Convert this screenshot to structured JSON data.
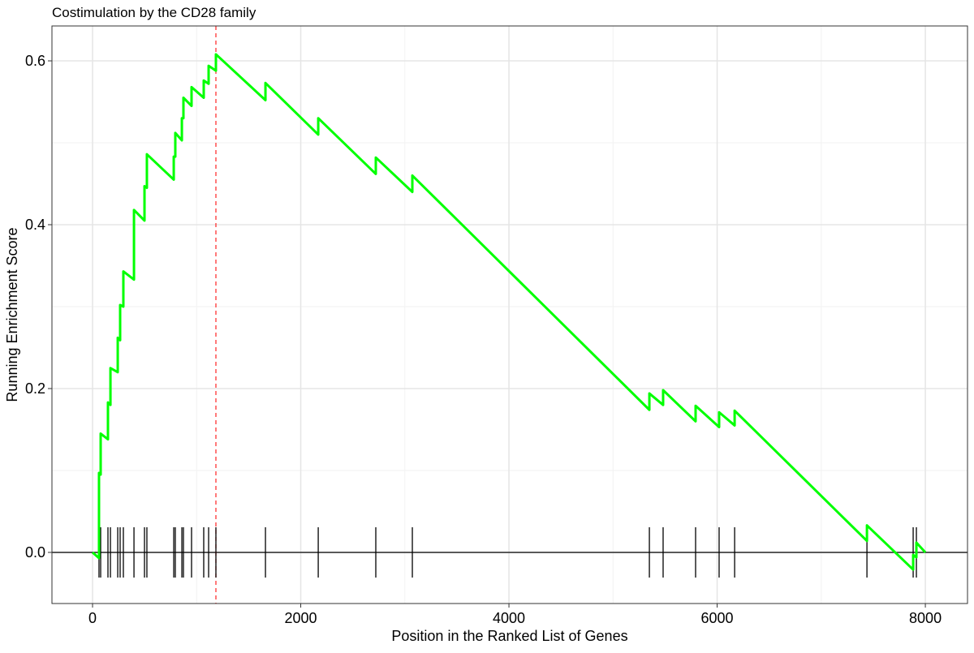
{
  "chart_data": {
    "type": "line",
    "title": "Costimulation by the CD28 family",
    "x_label": "Position in the Ranked List of Genes",
    "y_label": "Running Enrichment Score",
    "xlim": [
      -390,
      8405
    ],
    "ylim": [
      -0.0624,
      0.6426
    ],
    "xticks": [
      0,
      2000,
      4000,
      6000,
      8000
    ],
    "yticks": [
      {
        "value": 0,
        "label": "0.0"
      },
      0.2,
      0.4,
      0.6
    ],
    "minor_xticks": [
      1000,
      3000,
      5000,
      7000
    ],
    "minor_yticks": [
      0.1,
      0.3,
      0.5
    ],
    "grid": true,
    "hline": 0,
    "vline": 1185,
    "vline_color": "#ff3333",
    "hit_color": "#000000",
    "series": [
      {
        "color": "#00ff00",
        "x": [
          0,
          62,
          62,
          78,
          78,
          148,
          148,
          172,
          172,
          242,
          242,
          265,
          265,
          296,
          296,
          398,
          398,
          499,
          499,
          522,
          522,
          780,
          780,
          795,
          795,
          858,
          858,
          873,
          873,
          951,
          951,
          1068,
          1068,
          1115,
          1115,
          1185,
          1185,
          1661,
          1661,
          2168,
          2168,
          2721,
          2721,
          3072,
          3072,
          5349,
          5349,
          5481,
          5481,
          5793,
          5793,
          6019,
          6019,
          6168,
          6168,
          7439,
          7439,
          7883,
          7883,
          7914,
          7914,
          8000
        ],
        "values": [
          0,
          -0.007,
          0.097,
          0.095,
          0.145,
          0.138,
          0.183,
          0.18,
          0.225,
          0.22,
          0.262,
          0.259,
          0.302,
          0.3,
          0.343,
          0.333,
          0.418,
          0.405,
          0.447,
          0.445,
          0.486,
          0.455,
          0.483,
          0.483,
          0.512,
          0.503,
          0.53,
          0.53,
          0.555,
          0.545,
          0.568,
          0.555,
          0.576,
          0.572,
          0.594,
          0.588,
          0.608,
          0.552,
          0.573,
          0.51,
          0.53,
          0.462,
          0.482,
          0.44,
          0.46,
          0.174,
          0.194,
          0.18,
          0.198,
          0.16,
          0.179,
          0.153,
          0.171,
          0.155,
          0.173,
          0.014,
          0.033,
          -0.021,
          -0.003,
          -0.006,
          0.012,
          0.0
        ]
      }
    ],
    "hits": [
      62,
      78,
      148,
      172,
      242,
      265,
      296,
      398,
      499,
      522,
      780,
      795,
      858,
      873,
      951,
      1068,
      1115,
      1185,
      1661,
      2168,
      2721,
      3072,
      5349,
      5481,
      5793,
      6019,
      6168,
      7439,
      7883,
      7914
    ]
  }
}
